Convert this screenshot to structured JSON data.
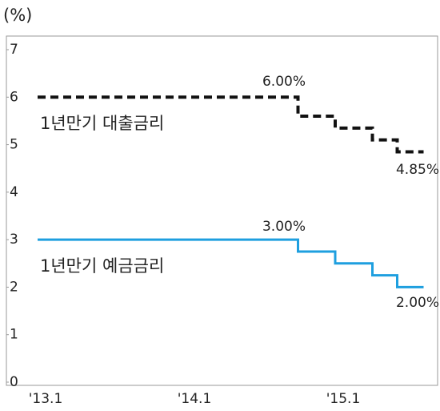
{
  "chart_data": {
    "type": "step-line",
    "y_unit": "(%)",
    "categories": [
      "'13.1",
      null,
      null,
      null,
      null,
      null,
      null,
      null,
      null,
      null,
      null,
      null,
      "'14.1",
      null,
      null,
      null,
      null,
      null,
      null,
      null,
      null,
      null,
      null,
      null,
      "'15.1",
      null,
      null,
      null,
      null,
      null,
      null,
      null
    ],
    "series": [
      {
        "name": "1년만기 대출금리",
        "color": "#111111",
        "dashed": true,
        "values": [
          6,
          6,
          6,
          6,
          6,
          6,
          6,
          6,
          6,
          6,
          6,
          6,
          6,
          6,
          6,
          6,
          6,
          6,
          6,
          6,
          6,
          6,
          5.6,
          5.6,
          5.6,
          5.35,
          5.35,
          5.35,
          5.1,
          5.1,
          4.85,
          4.85
        ]
      },
      {
        "name": "1년만기 예금금리",
        "color": "#1e9fdf",
        "dashed": false,
        "values": [
          3,
          3,
          3,
          3,
          3,
          3,
          3,
          3,
          3,
          3,
          3,
          3,
          3,
          3,
          3,
          3,
          3,
          3,
          3,
          3,
          3,
          3,
          2.75,
          2.75,
          2.75,
          2.5,
          2.5,
          2.5,
          2.25,
          2.25,
          2,
          2
        ]
      }
    ],
    "annotations": [
      "6.00%",
      "4.85%",
      "3.00%",
      "2.00%"
    ],
    "ylim": [
      0,
      7
    ],
    "yticks": [
      0,
      1,
      2,
      3,
      4,
      5,
      6,
      7
    ],
    "grid": false
  }
}
